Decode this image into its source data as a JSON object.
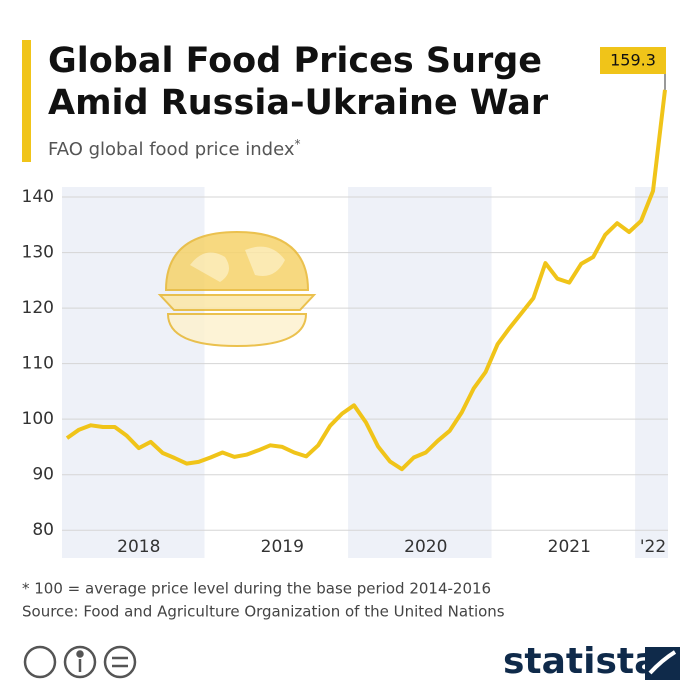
{
  "chart_data": {
    "type": "line",
    "title": [
      "Global Food Prices Surge",
      "Amid Russia-Ukraine War"
    ],
    "subtitle": "FAO global food price index",
    "subtitle_mark": "*",
    "categories": [
      null,
      null,
      null,
      null,
      null,
      null,
      "2018",
      null,
      null,
      null,
      null,
      null,
      null,
      null,
      null,
      null,
      null,
      null,
      "2019",
      null,
      null,
      null,
      null,
      null,
      null,
      null,
      null,
      null,
      null,
      null,
      "2020",
      null,
      null,
      null,
      null,
      null,
      null,
      null,
      null,
      null,
      null,
      null,
      "2021",
      null,
      null,
      null,
      null,
      null,
      null,
      "'22",
      null
    ],
    "values": [
      96.6,
      98.1,
      98.9,
      98.6,
      98.6,
      97.0,
      94.8,
      95.9,
      93.9,
      93.0,
      92.0,
      92.3,
      93.1,
      94.0,
      93.2,
      93.6,
      94.4,
      95.3,
      95.0,
      94.0,
      93.3,
      95.3,
      98.8,
      101.0,
      102.5,
      99.4,
      95.1,
      92.4,
      91.0,
      93.1,
      94.0,
      96.1,
      97.9,
      101.2,
      105.5,
      108.5,
      113.5,
      116.4,
      119.1,
      121.8,
      128.1,
      125.3,
      124.6,
      128.0,
      129.2,
      133.2,
      135.3,
      133.7,
      135.7,
      141.1,
      159.3
    ],
    "color": "#f0c419",
    "ylim": [
      75,
      160
    ],
    "yticks": [
      80,
      90,
      100,
      110,
      120,
      130,
      140
    ],
    "grid": true,
    "footnote": "* 100 = average price level during the base period 2014-2016",
    "source": "Source: Food and Agriculture Organization of the United Nations",
    "brand": "statista"
  }
}
